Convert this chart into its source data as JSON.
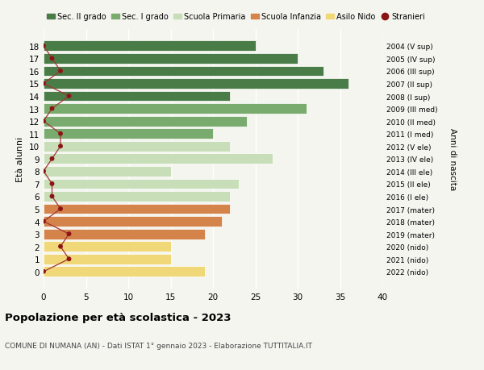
{
  "ages": [
    18,
    17,
    16,
    15,
    14,
    13,
    12,
    11,
    10,
    9,
    8,
    7,
    6,
    5,
    4,
    3,
    2,
    1,
    0
  ],
  "years": [
    "2004 (V sup)",
    "2005 (IV sup)",
    "2006 (III sup)",
    "2007 (II sup)",
    "2008 (I sup)",
    "2009 (III med)",
    "2010 (II med)",
    "2011 (I med)",
    "2012 (V ele)",
    "2013 (IV ele)",
    "2014 (III ele)",
    "2015 (II ele)",
    "2016 (I ele)",
    "2017 (mater)",
    "2018 (mater)",
    "2019 (mater)",
    "2020 (nido)",
    "2021 (nido)",
    "2022 (nido)"
  ],
  "values": [
    25,
    30,
    33,
    36,
    22,
    31,
    24,
    20,
    22,
    27,
    15,
    23,
    22,
    22,
    21,
    19,
    15,
    15,
    19
  ],
  "stranieri": [
    0,
    1,
    2,
    0,
    3,
    1,
    0,
    2,
    2,
    1,
    0,
    1,
    1,
    2,
    0,
    3,
    2,
    3,
    0
  ],
  "bar_colors": [
    "#4a7c47",
    "#4a7c47",
    "#4a7c47",
    "#4a7c47",
    "#4a7c47",
    "#7aab6e",
    "#7aab6e",
    "#7aab6e",
    "#c8deb8",
    "#c8deb8",
    "#c8deb8",
    "#c8deb8",
    "#c8deb8",
    "#d4834a",
    "#d4834a",
    "#d4834a",
    "#f0d878",
    "#f0d878",
    "#f0d878"
  ],
  "stranieri_dot_color": "#8b1515",
  "stranieri_line_color": "#a03535",
  "ylabel_left": "Età alunni",
  "ylabel_right": "Anni di nascita",
  "xlim": [
    0,
    40
  ],
  "xticks": [
    0,
    5,
    10,
    15,
    20,
    25,
    30,
    35,
    40
  ],
  "legend_labels": [
    "Sec. II grado",
    "Sec. I grado",
    "Scuola Primaria",
    "Scuola Infanzia",
    "Asilo Nido",
    "Stranieri"
  ],
  "legend_colors": [
    "#4a7c47",
    "#7aab6e",
    "#c8deb8",
    "#d4834a",
    "#f0d878",
    "#8b1515"
  ],
  "title": "Popolazione per età scolastica - 2023",
  "subtitle": "COMUNE DI NUMANA (AN) - Dati ISTAT 1° gennaio 2023 - Elaborazione TUTTITALIA.IT",
  "bg_color": "#f5f5f0"
}
